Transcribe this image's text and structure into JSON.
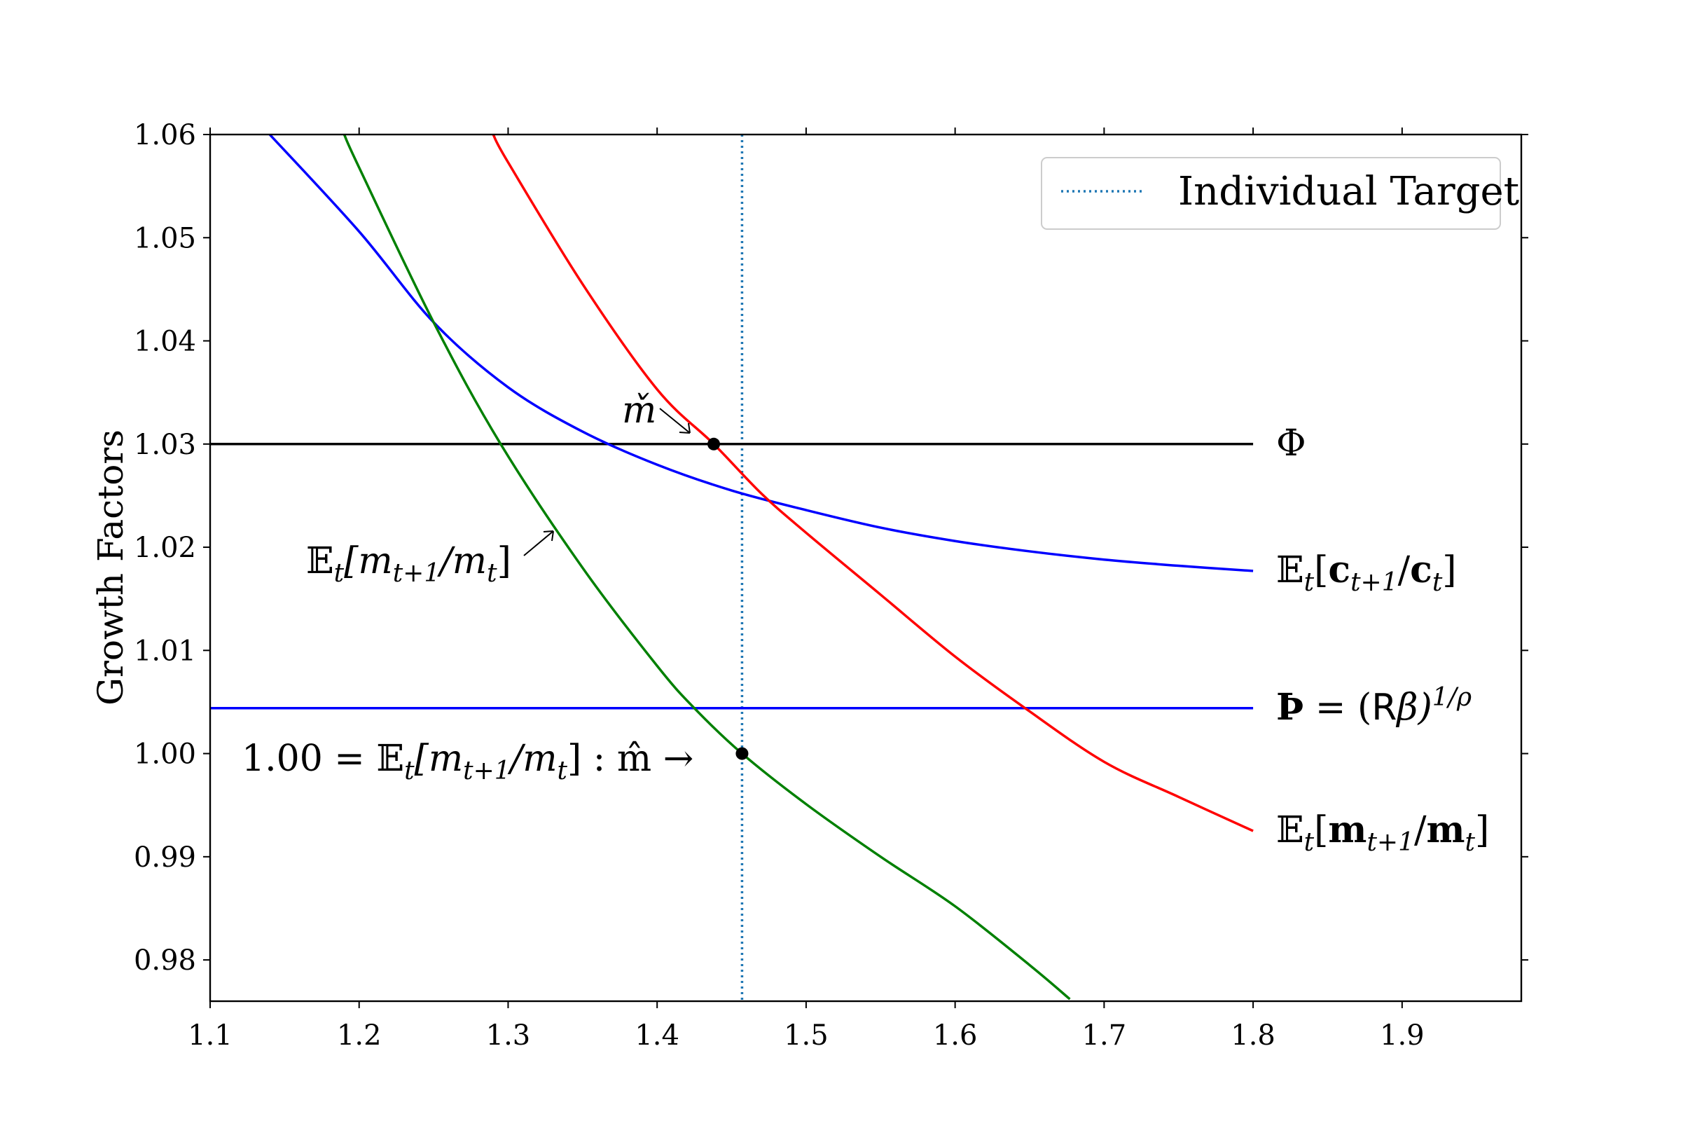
{
  "chart_data": {
    "type": "line",
    "ylabel": "Growth Factors",
    "xlabel": "",
    "xlim": [
      1.1,
      1.98
    ],
    "ylim": [
      0.976,
      1.06
    ],
    "x_ticks": [
      "1.1",
      "1.2",
      "1.3",
      "1.4",
      "1.5",
      "1.6",
      "1.7",
      "1.8",
      "1.9"
    ],
    "y_ticks": [
      "0.98",
      "0.99",
      "1.00",
      "1.01",
      "1.02",
      "1.03",
      "1.04",
      "1.05",
      "1.06"
    ],
    "grid": false,
    "legend": {
      "placement": "top-right",
      "entries": [
        {
          "label": "Individual Target",
          "color": "#1f77b4",
          "style": "dotted"
        }
      ]
    },
    "target_x": 1.457,
    "series": [
      {
        "key": "phi",
        "color": "#000000",
        "label_parts": [
          "Φ"
        ],
        "x": [
          1.1,
          1.8
        ],
        "y": [
          1.03,
          1.03
        ]
      },
      {
        "key": "consumption",
        "color": "#0000ff",
        "label_parts": [
          "𝔼",
          "t",
          "[",
          "c",
          "t+1",
          "/",
          "c",
          "t",
          "]"
        ],
        "x": [
          1.14,
          1.2,
          1.25,
          1.3,
          1.35,
          1.4,
          1.45,
          1.5,
          1.55,
          1.6,
          1.65,
          1.7,
          1.75,
          1.8
        ],
        "y": [
          1.06,
          1.0506,
          1.0418,
          1.0355,
          1.0312,
          1.028,
          1.0255,
          1.0236,
          1.0219,
          1.0206,
          1.0196,
          1.0188,
          1.0182,
          1.0177
        ]
      },
      {
        "key": "patience",
        "color": "#0000ff",
        "label_parts": [
          "Þ",
          " = (",
          "R",
          "β)",
          "1/ρ"
        ],
        "x": [
          1.1,
          1.8
        ],
        "y": [
          1.0044,
          1.0044
        ]
      },
      {
        "key": "market_resources_bold",
        "color": "#ff0000",
        "label_parts": [
          "𝔼",
          "t",
          "[",
          "m",
          "t+1",
          "/",
          "m",
          "t",
          "]"
        ],
        "x": [
          1.29,
          1.3,
          1.35,
          1.4,
          1.438,
          1.47,
          1.5,
          1.55,
          1.6,
          1.647,
          1.7,
          1.75,
          1.8
        ],
        "y": [
          1.06,
          1.0573,
          1.0455,
          1.0353,
          1.03,
          1.0252,
          1.0214,
          1.0154,
          1.0094,
          1.0044,
          0.9992,
          0.9958,
          0.9925
        ]
      },
      {
        "key": "market_resources",
        "color": "#008000",
        "label_parts": [
          "𝔼",
          "t",
          "[",
          "m",
          "t+1",
          "/",
          "m",
          "t",
          "]"
        ],
        "x": [
          1.19,
          1.2,
          1.25,
          1.295,
          1.35,
          1.4,
          1.425,
          1.457,
          1.5,
          1.55,
          1.6,
          1.65,
          1.677
        ],
        "y": [
          1.06,
          1.0568,
          1.0418,
          1.03,
          1.018,
          1.0085,
          1.0044,
          1.0,
          0.9951,
          0.99,
          0.9852,
          0.9795,
          0.9762
        ]
      }
    ],
    "points": [
      {
        "name": "m-check",
        "x": 1.438,
        "y": 1.03
      },
      {
        "name": "m-hat",
        "x": 1.457,
        "y": 1.0
      }
    ],
    "annotations": {
      "m_check": "m̌",
      "m_hat_prefix": "1.00 = ",
      "m_hat_expr": [
        "𝔼",
        "t",
        "[m",
        "t+1",
        "/m",
        "t",
        "] :  m̂ →"
      ],
      "green_label": [
        "𝔼",
        "t",
        "[m",
        "t+1",
        "/m",
        "t",
        "]"
      ]
    }
  }
}
